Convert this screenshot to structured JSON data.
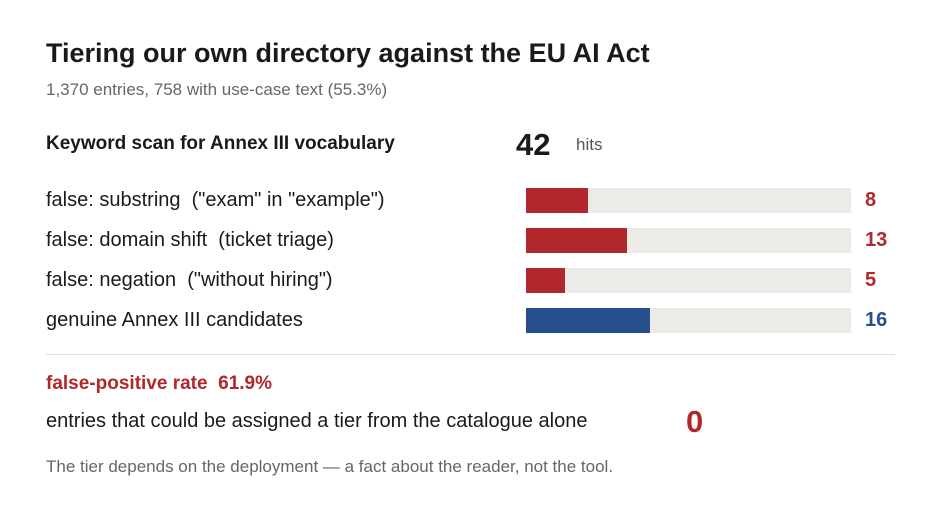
{
  "title": "Tiering our own directory against the EU AI Act",
  "subtitle": "1,370 entries, 758 with use-case text (55.3%)",
  "scan": {
    "label": "Keyword scan for Annex III vocabulary",
    "count": "42",
    "unit": "hits"
  },
  "colors": {
    "false_positive": "#b0282b",
    "genuine": "#264f8c",
    "track": "#ecebe8"
  },
  "chart_data": {
    "type": "bar",
    "orientation": "horizontal",
    "xlim": [
      0,
      42
    ],
    "categories": [
      "false: substring  (\"exam\" in \"example\")",
      "false: domain shift  (ticket triage)",
      "false: negation  (\"without hiring\")",
      "genuine Annex III candidates"
    ],
    "values": [
      8,
      13,
      5,
      16
    ],
    "labels": [
      "8",
      "13",
      "5",
      "16"
    ],
    "bar_colors": [
      "#b0282b",
      "#b0282b",
      "#b0282b",
      "#264f8c"
    ]
  },
  "false_positive": {
    "label": "false-positive rate",
    "value": "61.9%"
  },
  "tier": {
    "label": "entries that could be assigned a tier from the catalogue alone",
    "value": "0"
  },
  "footnote": "The tier depends on the deployment — a fact about the reader, not the tool."
}
